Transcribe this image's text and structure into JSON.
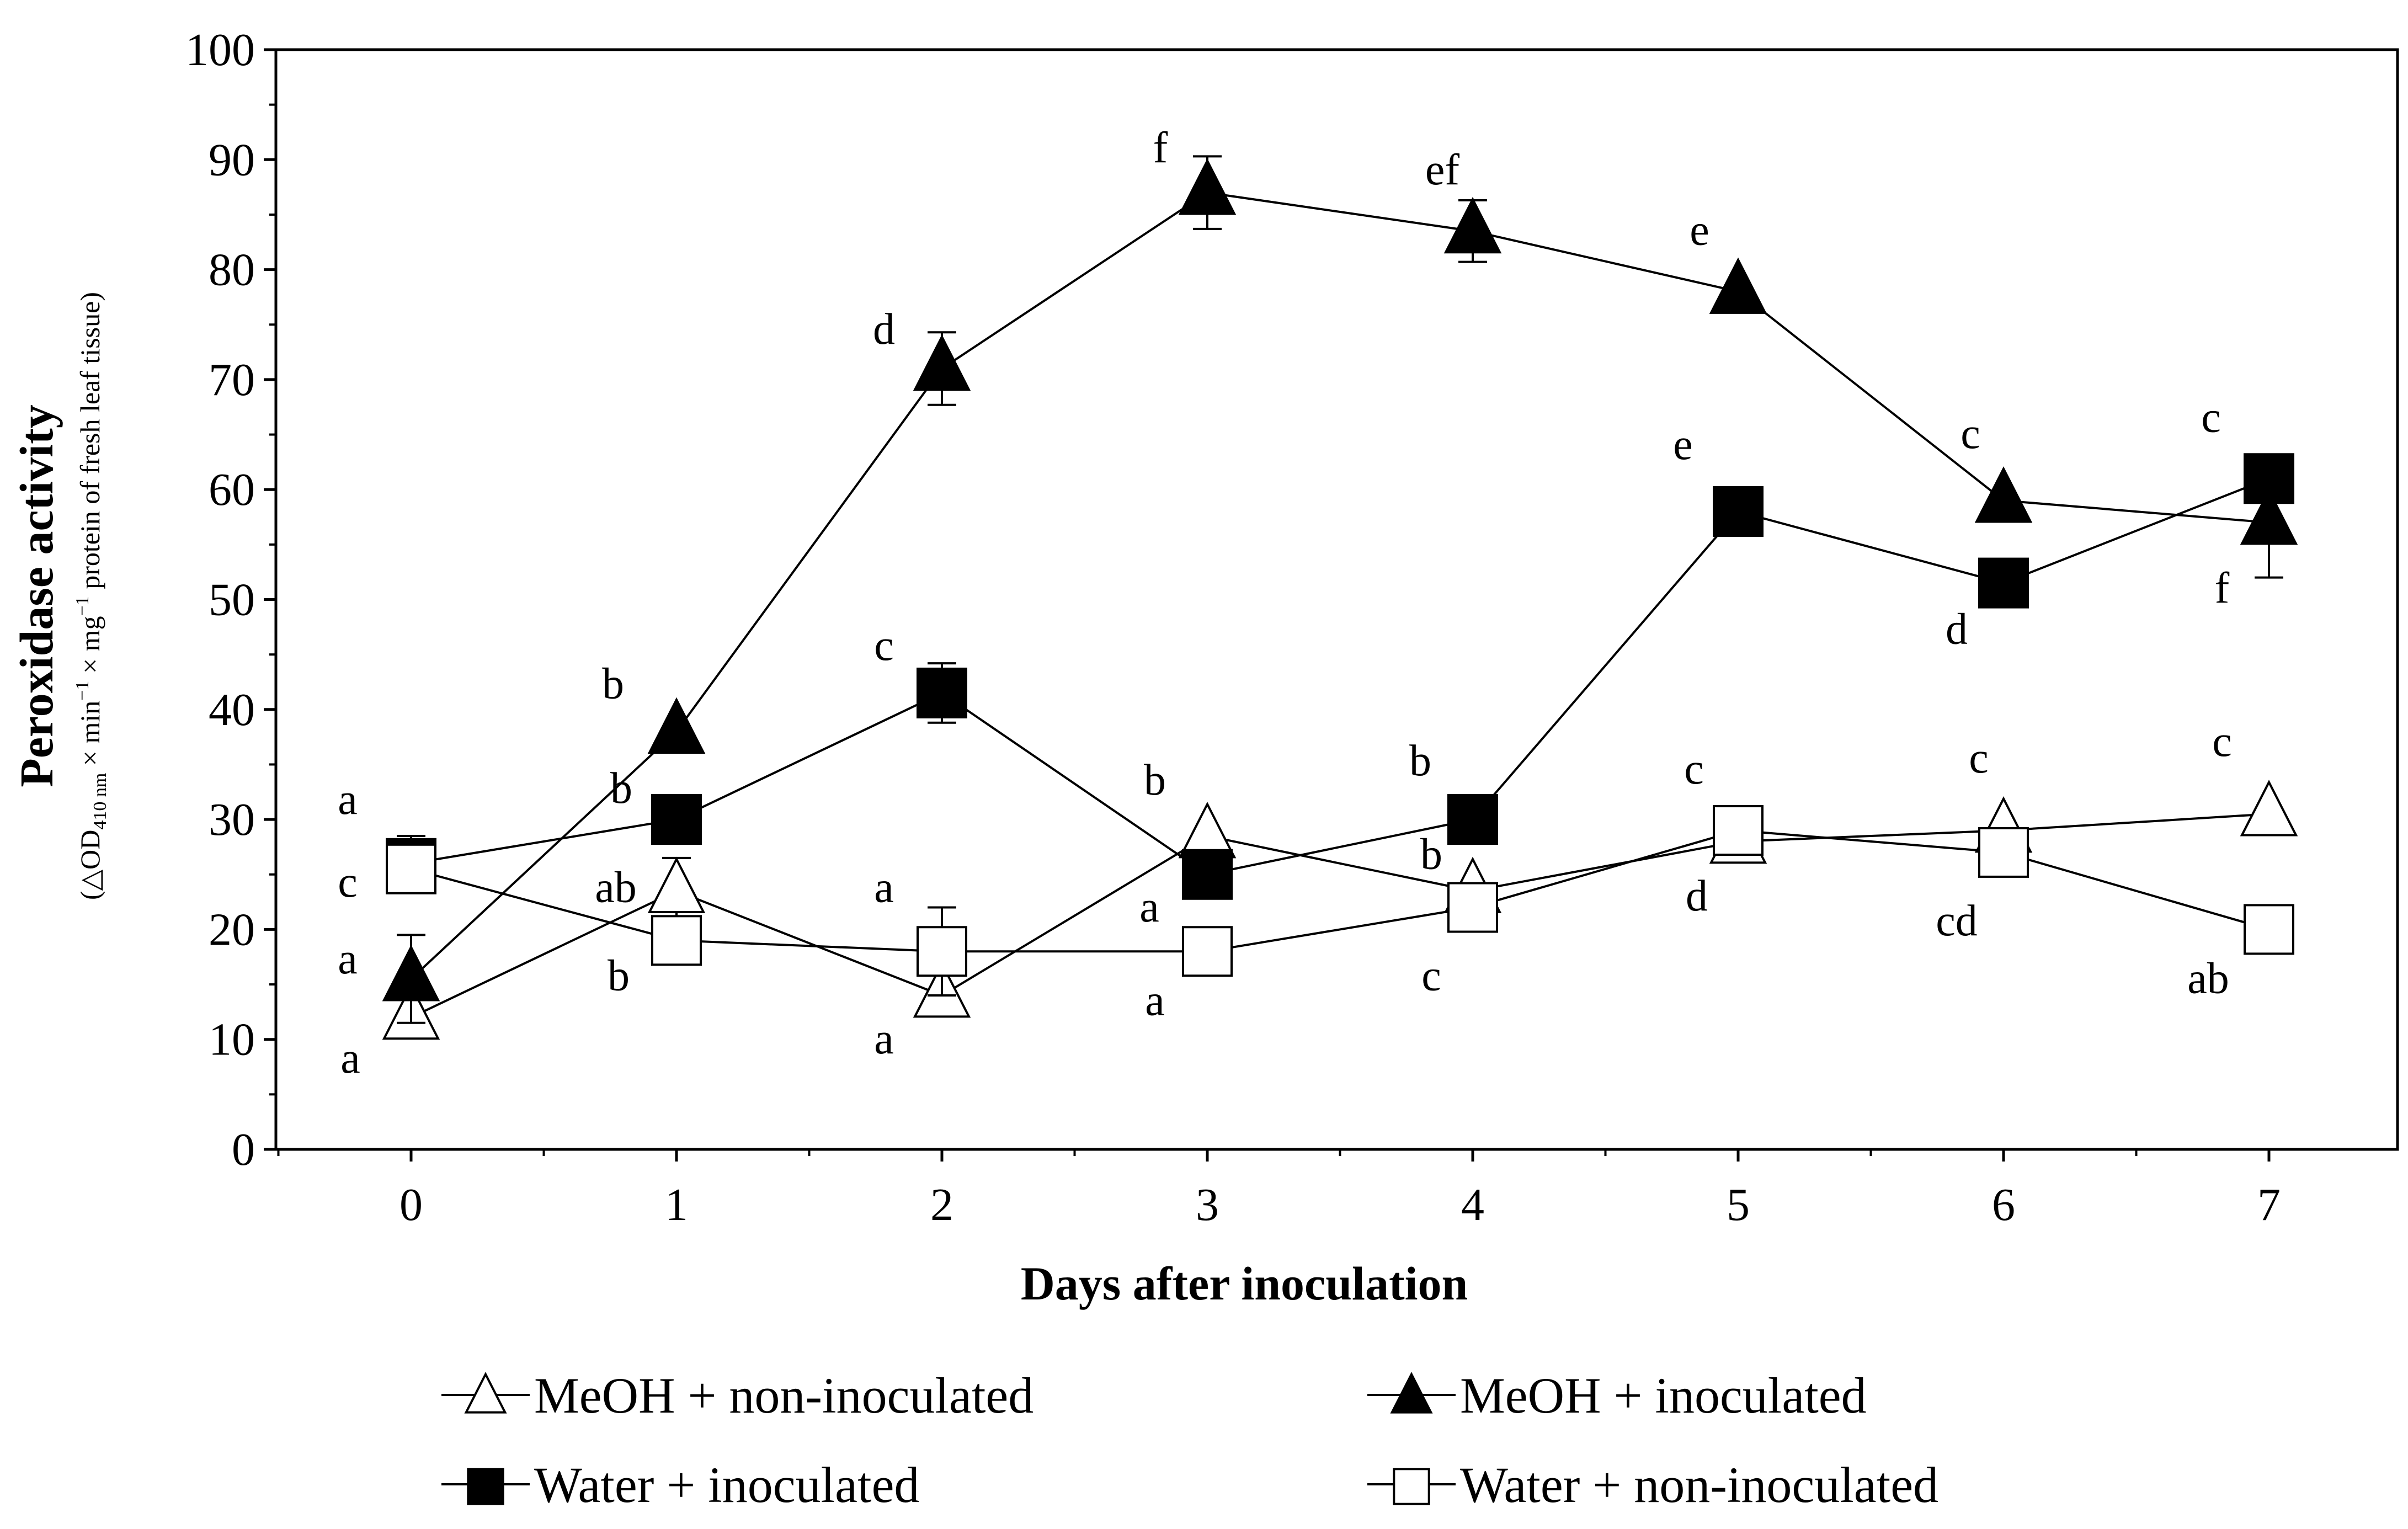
{
  "chart_data": {
    "type": "line",
    "title": "",
    "xlabel": "Days after inoculation",
    "ylabel": "Peroxidase activity",
    "ylabel_sub": "(△OD 410 nm × min⁻¹ × mg⁻¹ protein of fresh leaf tissue)",
    "ylabel_sub_parts": {
      "open": "(△OD",
      "sub": "410 nm",
      "mid1": " × min",
      "sup1": "−1",
      "mid2": " × mg",
      "sup2": "−1",
      "tail": " protein of fresh leaf tissue)"
    },
    "x": [
      0,
      1,
      2,
      3,
      4,
      5,
      6,
      7
    ],
    "x_ticks": [
      "0",
      "1",
      "2",
      "3",
      "4",
      "5",
      "6",
      "7"
    ],
    "ylim": [
      0,
      100
    ],
    "y_ticks": [
      "0",
      "10",
      "20",
      "30",
      "40",
      "50",
      "60",
      "70",
      "80",
      "90",
      "100"
    ],
    "legend_position": "bottom",
    "series": [
      {
        "name": "MeOH + non-inoculated",
        "marker": "triangle-open",
        "values": [
          12,
          23.5,
          14,
          28.5,
          23.5,
          28,
          29,
          30.5
        ],
        "errors": [
          0,
          3,
          0,
          0,
          0,
          0,
          0,
          0
        ],
        "labels": [
          "a",
          "ab",
          "a",
          "b",
          "b",
          "c",
          "c",
          "c"
        ]
      },
      {
        "name": "MeOH + inoculated",
        "marker": "triangle-filled",
        "values": [
          15.5,
          38,
          71,
          87,
          83.5,
          78,
          59,
          57
        ],
        "errors": [
          4,
          0,
          3.3,
          3.3,
          2.8,
          0,
          0,
          5
        ],
        "labels": [
          "a",
          "b",
          "d",
          "f",
          "ef",
          "e",
          "c",
          "f"
        ]
      },
      {
        "name": "Water + inoculated",
        "marker": "square-filled",
        "values": [
          26,
          30,
          41.5,
          25,
          30,
          58,
          51.5,
          61
        ],
        "errors": [
          2.5,
          0,
          2.7,
          0,
          0,
          0,
          0,
          0
        ],
        "labels": [
          "a",
          "b",
          "c",
          "a",
          "b",
          "e",
          "d",
          "c"
        ]
      },
      {
        "name": "Water + non-inoculated",
        "marker": "square-open",
        "values": [
          25.5,
          19,
          18,
          18,
          22,
          29,
          27,
          20
        ],
        "errors": [
          0,
          0,
          4,
          0,
          0,
          0,
          0,
          0
        ],
        "labels": [
          "c",
          "b",
          "a",
          "a",
          "c",
          "d",
          "cd",
          "ab"
        ]
      }
    ]
  }
}
